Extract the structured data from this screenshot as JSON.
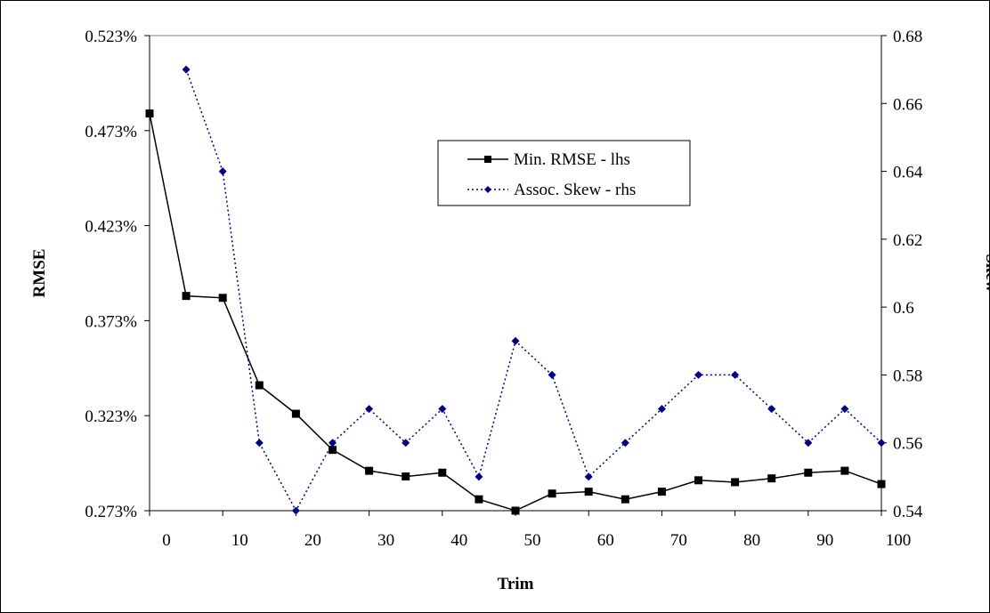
{
  "chart_data": {
    "type": "line",
    "title": "",
    "xlabel": "Trim",
    "ylabel_left": "RMSE",
    "ylabel_right": "Skew",
    "x_ticks": [
      0,
      10,
      20,
      30,
      40,
      50,
      60,
      70,
      80,
      90,
      100
    ],
    "xlim": [
      0,
      100
    ],
    "ylim_left": [
      0.273,
      0.523
    ],
    "y_ticks_left": [
      "0.273%",
      "0.323%",
      "0.373%",
      "0.423%",
      "0.473%",
      "0.523%"
    ],
    "ylim_right": [
      0.54,
      0.68
    ],
    "y_ticks_right": [
      "0.54",
      "0.56",
      "0.58",
      "0.6",
      "0.62",
      "0.64",
      "0.66",
      "0.68"
    ],
    "grid": false,
    "legend_position": "upper-center",
    "series": [
      {
        "name": "Min. RMSE - lhs",
        "axis": "left",
        "color": "#000000",
        "style": "solid",
        "marker": "square",
        "x": [
          0,
          5,
          10,
          15,
          20,
          25,
          30,
          35,
          40,
          45,
          50,
          55,
          60,
          65,
          70,
          75,
          80,
          85,
          90,
          95,
          100
        ],
        "values": [
          0.482,
          0.386,
          0.385,
          0.339,
          0.324,
          0.305,
          0.294,
          0.291,
          0.293,
          0.279,
          0.273,
          0.282,
          0.283,
          0.279,
          0.283,
          0.289,
          0.288,
          0.29,
          0.293,
          0.294,
          0.287
        ]
      },
      {
        "name": "Assoc. Skew - rhs",
        "axis": "right",
        "color": "#000080",
        "style": "dotted",
        "marker": "diamond",
        "x": [
          5,
          10,
          15,
          20,
          25,
          30,
          35,
          40,
          45,
          50,
          55,
          60,
          65,
          70,
          75,
          80,
          85,
          90,
          95,
          100
        ],
        "values": [
          0.67,
          0.64,
          0.56,
          0.54,
          0.56,
          0.57,
          0.56,
          0.57,
          0.55,
          0.59,
          0.58,
          0.55,
          0.56,
          0.57,
          0.58,
          0.58,
          0.57,
          0.56,
          0.57,
          0.56
        ]
      }
    ]
  }
}
